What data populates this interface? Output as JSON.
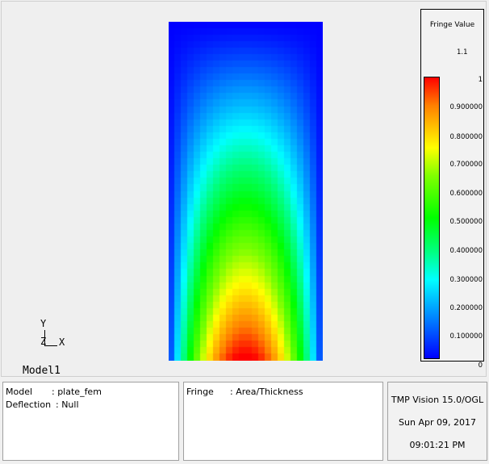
{
  "viewport": {
    "model_label": "Model1",
    "axis": {
      "y": "Y",
      "z": "Z",
      "x": "X"
    }
  },
  "legend": {
    "title": "Fringe Value",
    "max_label": "1.1",
    "ticks": [
      "1",
      "0.900000",
      "0.800000",
      "0.700000",
      "0.600000",
      "0.500000",
      "0.400000",
      "0.300000",
      "0.200000",
      "0.100000",
      "0"
    ],
    "colors": {
      "high": "#ff0000",
      "mid": "#00ff00",
      "low": "#0000ff"
    }
  },
  "info": {
    "model": {
      "model_key": "Model",
      "model_value": ": plate_fem",
      "deflection_key": "Deflection",
      "deflection_value": ": Null"
    },
    "fringe": {
      "fringe_key": "Fringe",
      "fringe_value": ": Area/Thickness"
    },
    "vision": {
      "product": "TMP Vision 15.0/OGL",
      "date": "Sun Apr 09, 2017",
      "time": "09:01:21 PM"
    }
  }
}
